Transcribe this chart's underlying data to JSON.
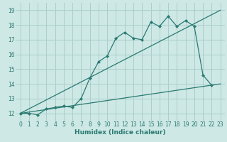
{
  "xlabel": "Humidex (Indice chaleur)",
  "background_color": "#cde8e5",
  "grid_color": "#aacfcc",
  "line_color": "#2a7a72",
  "xlim": [
    -0.5,
    23.5
  ],
  "ylim": [
    11.5,
    19.5
  ],
  "xticks": [
    0,
    1,
    2,
    3,
    4,
    5,
    6,
    7,
    8,
    9,
    10,
    11,
    12,
    13,
    14,
    15,
    16,
    17,
    18,
    19,
    20,
    21,
    22,
    23
  ],
  "yticks": [
    12,
    13,
    14,
    15,
    16,
    17,
    18,
    19
  ],
  "ytick_labels": [
    "12",
    "13",
    "14",
    "15",
    "16",
    "17",
    "18",
    "19"
  ],
  "series1_x": [
    0,
    1,
    2,
    3,
    4,
    5,
    6,
    7,
    8,
    9,
    10,
    11,
    12,
    13,
    14,
    15,
    16,
    17,
    18,
    19,
    20,
    21,
    22
  ],
  "series1_y": [
    12.0,
    12.0,
    11.9,
    12.3,
    12.4,
    12.5,
    12.4,
    13.0,
    14.4,
    15.5,
    15.9,
    17.1,
    17.5,
    17.1,
    17.0,
    18.2,
    17.9,
    18.6,
    17.9,
    18.3,
    17.9,
    14.6,
    13.9
  ],
  "series2_x": [
    0,
    23
  ],
  "series2_y": [
    12.0,
    14.0
  ],
  "series3_x": [
    0,
    23
  ],
  "series3_y": [
    12.0,
    19.0
  ],
  "marker_x": [
    0,
    1,
    2,
    3,
    4,
    5,
    6,
    7,
    8,
    9,
    10,
    11,
    12,
    13,
    14,
    15,
    16,
    17,
    18,
    19,
    20,
    21,
    22
  ],
  "marker_y": [
    12.0,
    12.0,
    11.9,
    12.3,
    12.4,
    12.5,
    12.4,
    13.0,
    14.4,
    15.5,
    15.9,
    17.1,
    17.5,
    17.1,
    17.0,
    18.2,
    17.9,
    18.6,
    17.9,
    18.3,
    17.9,
    14.6,
    13.9
  ],
  "xlabel_fontsize": 6.5,
  "tick_fontsize": 5.5,
  "linewidth": 0.9,
  "markersize": 2.5
}
